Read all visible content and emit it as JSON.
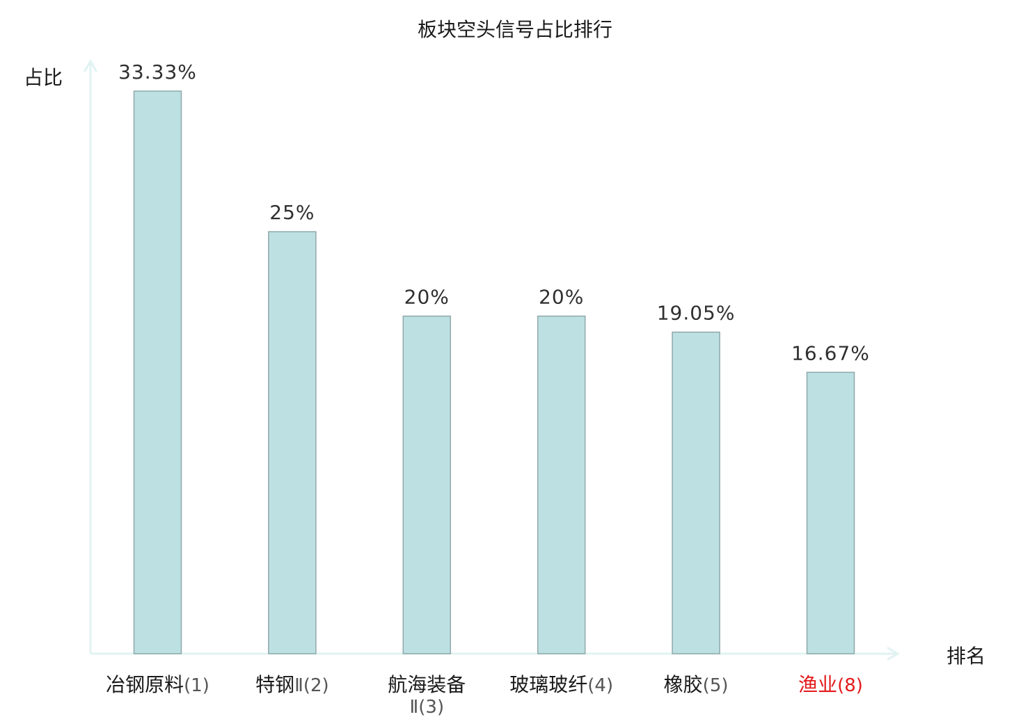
{
  "chart_data": {
    "type": "bar",
    "title": "板块空头信号占比排行",
    "ylabel": "占比",
    "xlabel": "排名",
    "categories": [
      "冶钢原料(1)",
      "特钢Ⅱ(2)",
      "航海装备Ⅱ(3)",
      "玻璃玻纤(4)",
      "橡胶(5)",
      "渔业(8)"
    ],
    "category_lines": [
      [
        {
          "text": "冶钢原料",
          "style": "cjk"
        },
        {
          "text": "(1)",
          "style": "rank"
        }
      ],
      [
        {
          "text": "特钢",
          "style": "cjk"
        },
        {
          "text": "Ⅱ(2)",
          "style": "rank"
        }
      ],
      [
        {
          "text": "航海装备",
          "style": "cjk"
        },
        {
          "text": "Ⅱ(3)",
          "style": "rank-line2"
        }
      ],
      [
        {
          "text": "玻璃玻纤",
          "style": "cjk"
        },
        {
          "text": "(4)",
          "style": "rank"
        }
      ],
      [
        {
          "text": "橡胶",
          "style": "cjk"
        },
        {
          "text": "(5)",
          "style": "rank"
        }
      ],
      [
        {
          "text": "渔业",
          "style": "cjk"
        },
        {
          "text": "(8)",
          "style": "rank"
        }
      ]
    ],
    "values": [
      33.33,
      25,
      20,
      20,
      19.05,
      16.67
    ],
    "value_labels": [
      "33.33%",
      "25%",
      "20%",
      "20%",
      "19.05%",
      "16.67%"
    ],
    "highlight_index": 5,
    "ylim": [
      0,
      35
    ],
    "grid": false,
    "legend": "none",
    "colors": {
      "bar_fill": "#bde0e3",
      "bar_stroke": "#8fa8aa",
      "axis": "#e1f3f1",
      "text": "#2f2f2f",
      "label": "#1a1a1a",
      "rank": "#555555",
      "highlight": "#e41a1c"
    }
  }
}
